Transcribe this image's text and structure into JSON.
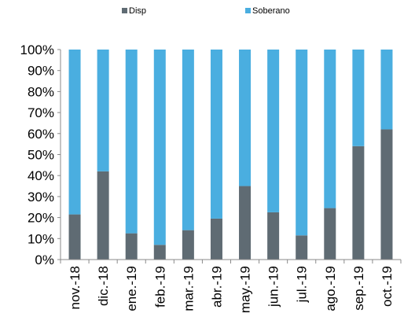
{
  "chart_data": {
    "type": "bar",
    "stacked": true,
    "percent": true,
    "categories": [
      "nov.-18",
      "dic.-18",
      "ene.-19",
      "feb.-19",
      "mar.-19",
      "abr.-19",
      "may.-19",
      "jun.-19",
      "jul.-19",
      "ago.-19",
      "sep.-19",
      "oct.-19"
    ],
    "series": [
      {
        "name": "Disp",
        "color": "#5f6b73",
        "values": [
          21.5,
          42,
          12.5,
          7,
          14,
          19.5,
          35,
          22.5,
          11.5,
          24.5,
          54,
          62
        ]
      },
      {
        "name": "Soberano",
        "color": "#4aaee0",
        "values": [
          78.5,
          58,
          87.5,
          93,
          86,
          80.5,
          65,
          77.5,
          88.5,
          75.5,
          46,
          38
        ]
      }
    ],
    "yticks": [
      "0%",
      "10%",
      "20%",
      "30%",
      "40%",
      "50%",
      "60%",
      "70%",
      "80%",
      "90%",
      "100%"
    ],
    "ylim": [
      0,
      100
    ],
    "title": "",
    "xlabel": "",
    "ylabel": "",
    "legend_position": "top-center",
    "grid": false
  }
}
